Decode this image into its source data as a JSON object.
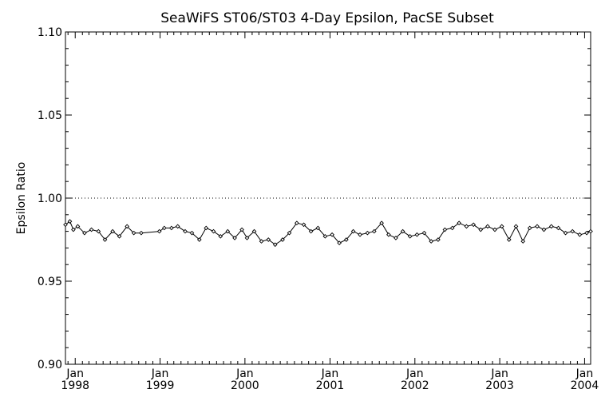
{
  "chart_data": {
    "type": "line",
    "title": "SeaWiFS ST06/ST03 4-Day Epsilon, PacSE Subset",
    "ylabel": "Epsilon Ratio",
    "xlabel": "",
    "ylim": [
      0.9,
      1.1
    ],
    "xlim": [
      "1997-11-20",
      "2004-01-27"
    ],
    "yticks": [
      "0.90",
      "0.95",
      "1.00",
      "1.05",
      "1.10"
    ],
    "yticks_values": [
      0.9,
      0.95,
      1.0,
      1.05,
      1.1
    ],
    "xticks": [
      {
        "date": "1998-01-01",
        "month": "Jan",
        "year": "1998"
      },
      {
        "date": "1999-01-01",
        "month": "Jan",
        "year": "1999"
      },
      {
        "date": "2000-01-01",
        "month": "Jan",
        "year": "2000"
      },
      {
        "date": "2001-01-01",
        "month": "Jan",
        "year": "2001"
      },
      {
        "date": "2002-01-01",
        "month": "Jan",
        "year": "2002"
      },
      {
        "date": "2003-01-01",
        "month": "Jan",
        "year": "2003"
      },
      {
        "date": "2004-01-01",
        "month": "Jan",
        "year": "2004"
      }
    ],
    "reference_line": 1.0,
    "reference_style": "dotted",
    "series": [
      {
        "x": [
          "1997-11-20",
          "1997-12-09",
          "1997-12-24",
          "1998-01-12",
          "1998-02-10",
          "1998-03-12",
          "1998-04-11",
          "1998-05-09",
          "1998-06-11",
          "1998-07-10",
          "1998-08-12",
          "1998-09-10",
          "1998-10-12",
          "1998-12-29",
          "1999-01-19",
          "1999-02-19",
          "1999-03-18",
          "1999-04-19",
          "1999-05-18",
          "1999-06-19",
          "1999-07-18",
          "1999-08-19",
          "1999-09-18",
          "1999-10-19",
          "1999-11-18",
          "1999-12-19",
          "2000-01-10",
          "2000-02-10",
          "2000-03-12",
          "2000-04-11",
          "2000-05-10",
          "2000-06-11",
          "2000-07-10",
          "2000-08-11",
          "2000-09-10",
          "2000-10-11",
          "2000-11-10",
          "2000-12-11",
          "2001-01-10",
          "2001-02-10",
          "2001-03-12",
          "2001-04-11",
          "2001-05-10",
          "2001-06-11",
          "2001-07-10",
          "2001-08-11",
          "2001-09-10",
          "2001-10-11",
          "2001-11-10",
          "2001-12-11",
          "2002-01-10",
          "2002-02-10",
          "2002-03-12",
          "2002-04-11",
          "2002-05-10",
          "2002-06-11",
          "2002-07-10",
          "2002-08-11",
          "2002-09-10",
          "2002-10-11",
          "2002-11-10",
          "2002-12-11",
          "2003-01-10",
          "2003-02-10",
          "2003-03-12",
          "2003-04-11",
          "2003-05-10",
          "2003-06-11",
          "2003-07-10",
          "2003-08-11",
          "2003-09-10",
          "2003-10-11",
          "2003-11-10",
          "2003-12-11",
          "2004-01-10",
          "2004-01-27"
        ],
        "values": [
          0.984,
          0.986,
          0.981,
          0.983,
          0.979,
          0.981,
          0.98,
          0.975,
          0.98,
          0.977,
          0.983,
          0.979,
          0.979,
          0.98,
          0.982,
          0.982,
          0.983,
          0.98,
          0.979,
          0.975,
          0.982,
          0.98,
          0.977,
          0.98,
          0.976,
          0.981,
          0.976,
          0.98,
          0.974,
          0.975,
          0.972,
          0.975,
          0.979,
          0.985,
          0.984,
          0.98,
          0.982,
          0.977,
          0.978,
          0.973,
          0.975,
          0.98,
          0.978,
          0.979,
          0.98,
          0.985,
          0.978,
          0.976,
          0.98,
          0.977,
          0.978,
          0.979,
          0.974,
          0.975,
          0.981,
          0.982,
          0.985,
          0.983,
          0.984,
          0.981,
          0.983,
          0.981,
          0.983,
          0.975,
          0.983,
          0.974,
          0.982,
          0.983,
          0.981,
          0.983,
          0.982,
          0.979,
          0.98,
          0.978,
          0.979,
          0.98
        ]
      }
    ]
  }
}
